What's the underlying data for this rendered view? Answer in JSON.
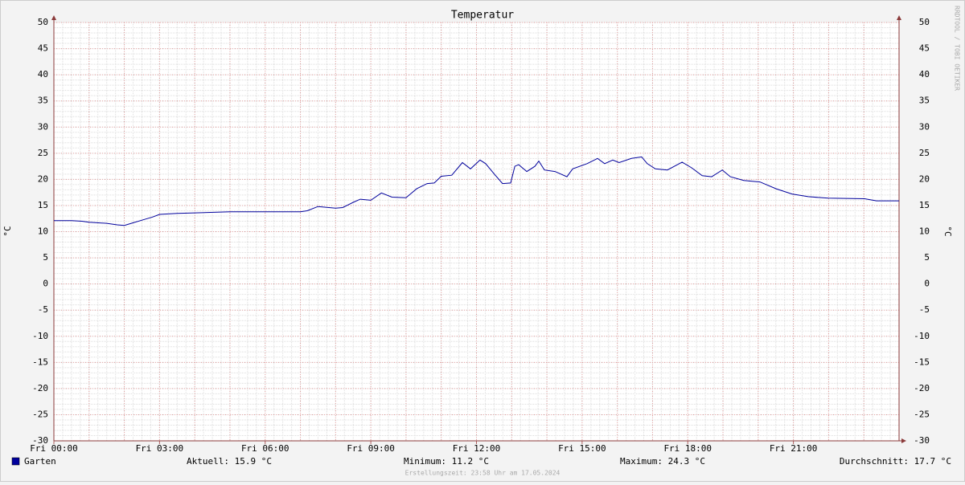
{
  "chart_data": {
    "type": "line",
    "title": "Temperatur",
    "y_label": "°C",
    "watermark": "RRDTOOL / TOBI OETIKER",
    "footer": "Erstellungszeit: 23:58 Uhr am 17.05.2024",
    "stats": [
      "Aktuell: 15.9 °C",
      "Minimum: 11.2 °C",
      "Maximum: 24.3 °C",
      "Durchschnitt: 17.7 °C"
    ],
    "xlim": [
      0,
      24
    ],
    "xticks": [
      {
        "value": 0,
        "label": "Fri 00:00"
      },
      {
        "value": 3,
        "label": "Fri 03:00"
      },
      {
        "value": 6,
        "label": "Fri 06:00"
      },
      {
        "value": 9,
        "label": "Fri 09:00"
      },
      {
        "value": 12,
        "label": "Fri 12:00"
      },
      {
        "value": 15,
        "label": "Fri 15:00"
      },
      {
        "value": 18,
        "label": "Fri 18:00"
      },
      {
        "value": 21,
        "label": "Fri 21:00"
      }
    ],
    "ylim": [
      -30,
      50
    ],
    "yticks": [
      -30,
      -25,
      -20,
      -15,
      -10,
      -5,
      0,
      5,
      10,
      15,
      20,
      25,
      30,
      35,
      40,
      45,
      50
    ],
    "grid": true,
    "series": [
      {
        "name": "Garten",
        "color": "#00009c",
        "x": [
          0,
          0.5,
          0.8,
          1,
          1.5,
          1.8,
          2,
          2.2,
          2.5,
          2.8,
          3,
          3.5,
          4,
          5,
          6,
          7,
          7.2,
          7.5,
          8,
          8.2,
          8.5,
          8.7,
          9,
          9.3,
          9.6,
          10,
          10.3,
          10.6,
          10.8,
          11,
          11.3,
          11.6,
          11.83,
          12.1,
          12.26,
          12.51,
          12.74,
          12.97,
          13.09,
          13.2,
          13.43,
          13.66,
          13.77,
          13.93,
          14.23,
          14.57,
          14.73,
          15.14,
          15.44,
          15.64,
          15.87,
          16.05,
          16.4,
          16.69,
          16.85,
          17.08,
          17.42,
          17.84,
          18.11,
          18.41,
          18.68,
          18.98,
          19.21,
          19.59,
          20.05,
          20.51,
          20.96,
          21.42,
          21.99,
          23.02,
          23.36,
          24
        ],
        "values": [
          12.1,
          12.1,
          12.0,
          11.8,
          11.6,
          11.3,
          11.2,
          11.6,
          12.2,
          12.8,
          13.3,
          13.5,
          13.6,
          13.8,
          13.8,
          13.8,
          14.0,
          14.8,
          14.5,
          14.6,
          15.6,
          16.2,
          16.0,
          17.4,
          16.6,
          16.5,
          18.2,
          19.2,
          19.3,
          20.6,
          20.8,
          23.2,
          22.0,
          23.7,
          23.0,
          21.0,
          19.2,
          19.3,
          22.5,
          22.8,
          21.5,
          22.5,
          23.5,
          21.8,
          21.5,
          20.5,
          22.0,
          23.0,
          24.0,
          23.0,
          23.7,
          23.2,
          24.0,
          24.3,
          23.0,
          22.0,
          21.8,
          23.3,
          22.2,
          20.7,
          20.5,
          21.8,
          20.5,
          19.8,
          19.5,
          18.2,
          17.2,
          16.7,
          16.4,
          16.3,
          15.9,
          15.9
        ]
      }
    ]
  }
}
